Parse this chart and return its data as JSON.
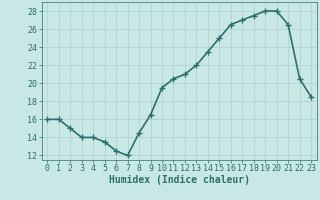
{
  "x": [
    0,
    1,
    2,
    3,
    4,
    5,
    6,
    7,
    8,
    9,
    10,
    11,
    12,
    13,
    14,
    15,
    16,
    17,
    18,
    19,
    20,
    21,
    22,
    23
  ],
  "y": [
    16,
    16,
    15,
    14,
    14,
    13.5,
    12.5,
    12,
    14.5,
    16.5,
    19.5,
    20.5,
    21,
    22,
    23.5,
    25.0,
    26.5,
    27.0,
    27.5,
    28.0,
    28.0,
    26.5,
    20.5,
    18.5
  ],
  "xlabel": "Humidex (Indice chaleur)",
  "ylim": [
    11.5,
    29
  ],
  "yticks": [
    12,
    14,
    16,
    18,
    20,
    22,
    24,
    26,
    28
  ],
  "xlim": [
    -0.5,
    23.5
  ],
  "xticks": [
    0,
    1,
    2,
    3,
    4,
    5,
    6,
    7,
    8,
    9,
    10,
    11,
    12,
    13,
    14,
    15,
    16,
    17,
    18,
    19,
    20,
    21,
    22,
    23
  ],
  "line_color": "#2d6e6e",
  "marker": "+",
  "bg_color": "#c8e8e5",
  "grid_color": "#b0cece",
  "xlabel_fontsize": 7,
  "tick_fontsize": 6,
  "marker_size": 4,
  "line_width": 1.2
}
